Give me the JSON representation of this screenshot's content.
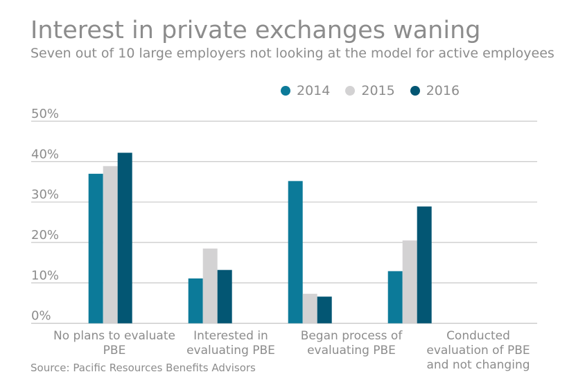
{
  "chart_data": {
    "type": "bar",
    "title": "Interest in private exchanges waning",
    "subtitle": "Seven out of 10 large employers not looking at the model for active employees",
    "categories": [
      [
        "No plans to evaluate",
        "PBE"
      ],
      [
        "Interested in",
        "evaluating PBE"
      ],
      [
        "Began process of",
        "evaluating PBE"
      ],
      [
        "Conducted",
        "evaluation of PBE",
        "and not changing"
      ]
    ],
    "series": [
      {
        "name": "2014",
        "color": "#0c7a99",
        "values": [
          37.0,
          11.1,
          35.2,
          12.9
        ]
      },
      {
        "name": "2015",
        "color": "#d3d2d3",
        "values": [
          38.9,
          18.5,
          7.3,
          20.5
        ]
      },
      {
        "name": "2016",
        "color": "#035673",
        "values": [
          42.2,
          13.2,
          6.6,
          28.9
        ]
      }
    ],
    "yticks": [
      "0%",
      "10%",
      "20%",
      "30%",
      "40%",
      "50%"
    ],
    "ylim": [
      0,
      50
    ],
    "grid": true,
    "legend": "top",
    "source": "Source: Pacific Resources Benefits Advisors"
  }
}
